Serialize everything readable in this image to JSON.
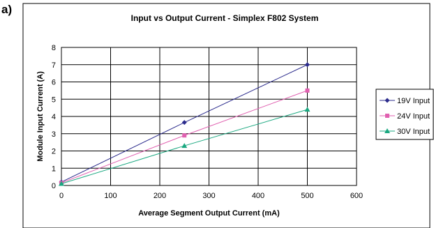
{
  "panel_label": "a)",
  "chart_data": {
    "type": "line",
    "title": "Input vs Output Current - Simplex F802 System",
    "xlabel": "Average Segment Output Current (mA)",
    "ylabel": "Module Input Current (A)",
    "xlim": [
      0,
      600
    ],
    "ylim": [
      0,
      8
    ],
    "xticks": [
      0,
      100,
      200,
      300,
      400,
      500,
      600
    ],
    "yticks": [
      0,
      1,
      2,
      3,
      4,
      5,
      6,
      7,
      8
    ],
    "grid": true,
    "legend_position": "right",
    "series": [
      {
        "name": "19V Input",
        "color": "#2b2b8c",
        "marker": "diamond",
        "x": [
          0,
          250,
          500
        ],
        "y": [
          0.2,
          3.65,
          7.0
        ]
      },
      {
        "name": "24V Input",
        "color": "#e060b0",
        "marker": "square",
        "x": [
          0,
          250,
          500
        ],
        "y": [
          0.15,
          2.9,
          5.5
        ]
      },
      {
        "name": "30V Input",
        "color": "#1aa880",
        "marker": "triangle",
        "x": [
          0,
          250,
          500
        ],
        "y": [
          0.1,
          2.3,
          4.4
        ]
      }
    ]
  }
}
